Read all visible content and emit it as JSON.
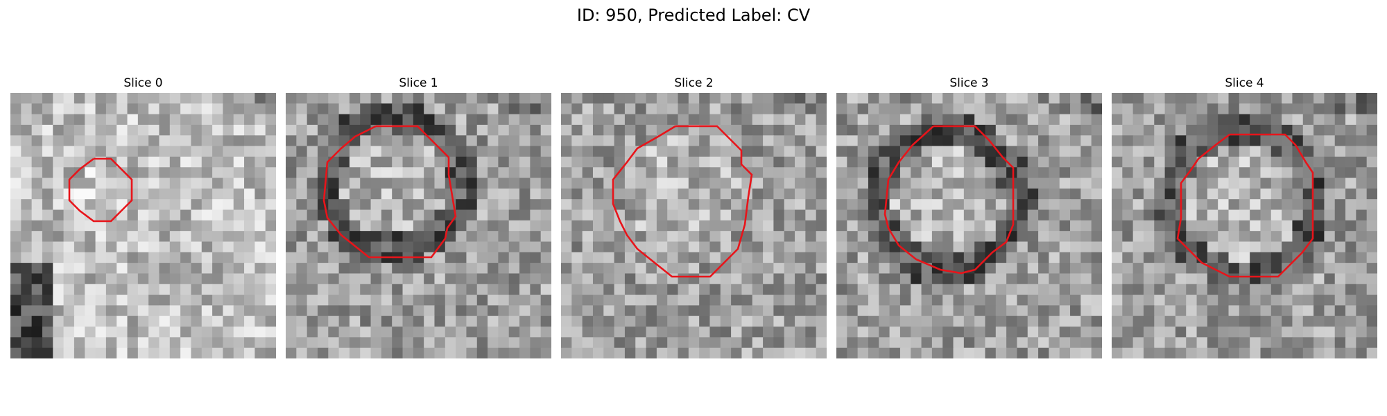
{
  "figure": {
    "title": "ID: 950, Predicted Label: CV",
    "contour_color": "#e8141a"
  },
  "slices": [
    {
      "label": "Slice 0",
      "seed": 11,
      "background": "bright-cells",
      "dark_ring": false
    },
    {
      "label": "Slice 1",
      "seed": 23,
      "background": "mixed",
      "dark_ring": true
    },
    {
      "label": "Slice 2",
      "seed": 37,
      "background": "mixed",
      "dark_ring": false
    },
    {
      "label": "Slice 3",
      "seed": 41,
      "background": "mixed",
      "dark_ring": true
    },
    {
      "label": "Slice 4",
      "seed": 53,
      "background": "mixed",
      "dark_ring": true
    }
  ]
}
